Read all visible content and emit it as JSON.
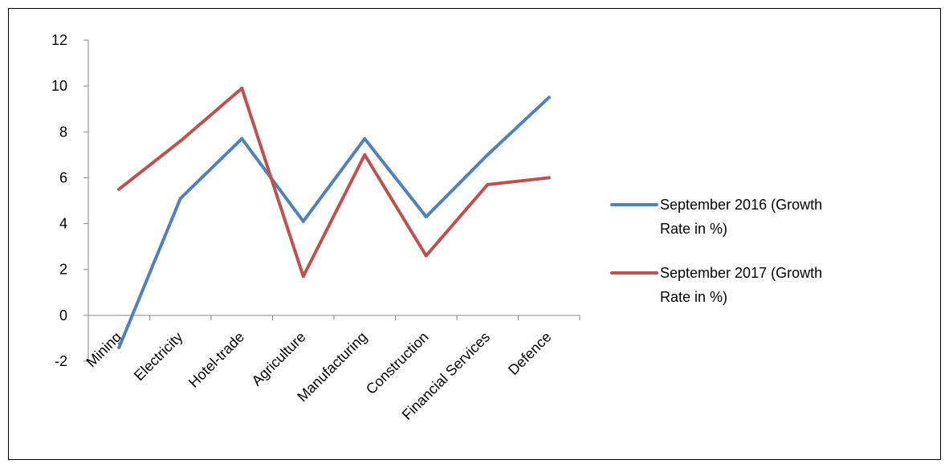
{
  "chart_data": {
    "type": "line",
    "title": "",
    "xlabel": "",
    "ylabel": "",
    "categories": [
      "Mining",
      "Electricity",
      "Hotel-trade",
      "Agriculture",
      "Manufacturing",
      "Construction",
      "Financial Services",
      "Defence"
    ],
    "ylim": [
      -2,
      12
    ],
    "yticks": [
      -2,
      0,
      2,
      4,
      6,
      8,
      10,
      12
    ],
    "grid": false,
    "legend_position": "right",
    "series": [
      {
        "name": "September 2016 (Growth Rate in %)",
        "legend_lines": [
          "September 2016 (Growth",
          "Rate in %)"
        ],
        "color": "#4F81BD",
        "values": [
          -1.4,
          5.1,
          7.7,
          4.1,
          7.7,
          4.3,
          7.0,
          9.5
        ]
      },
      {
        "name": "September 2017 (Growth Rate in %)",
        "legend_lines": [
          "September 2017 (Growth",
          "Rate in %)"
        ],
        "color": "#C0504D",
        "values": [
          5.5,
          7.6,
          9.9,
          1.7,
          7.0,
          2.6,
          5.7,
          6.0
        ]
      }
    ]
  }
}
